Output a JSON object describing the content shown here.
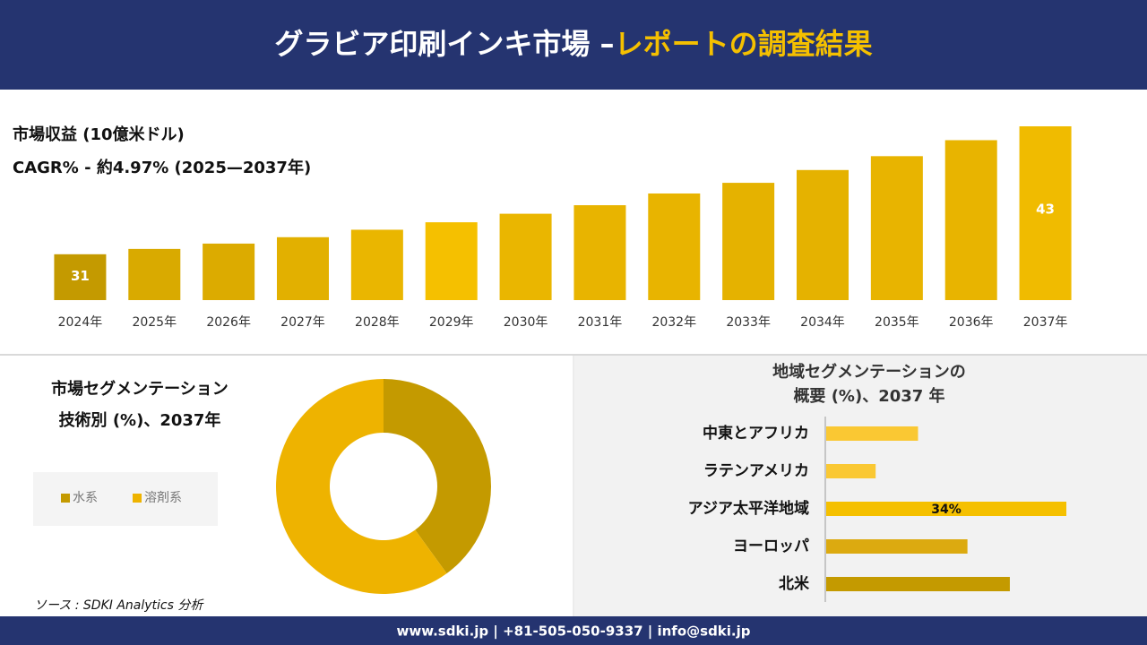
{
  "header": {
    "title": "グラビア印刷インキ市場 –",
    "highlight": "レポートの調査結果"
  },
  "chart_data": [
    {
      "type": "bar",
      "title": "市場収益 (10億米ドル)",
      "subtitle": "CAGR% - 約4.97% (2025—2037年)",
      "categories": [
        "2024年",
        "2025年",
        "2026年",
        "2027年",
        "2028年",
        "2029年",
        "2030年",
        "2031年",
        "2032年",
        "2033年",
        "2034年",
        "2035年",
        "2036年",
        "2037年"
      ],
      "values": [
        31,
        31.5,
        32,
        32.6,
        33.3,
        34,
        34.8,
        35.6,
        36.7,
        37.7,
        38.9,
        40.2,
        41.7,
        43
      ],
      "value_labels": [
        "31",
        null,
        null,
        null,
        null,
        null,
        null,
        null,
        null,
        null,
        null,
        null,
        null,
        "43"
      ],
      "colors": [
        "#c49a00",
        "#d9aa00",
        "#dcab00",
        "#e2b000",
        "#eab600",
        "#f5c000",
        "#eab600",
        "#e8b400",
        "#e8b400",
        "#e5b200",
        "#e5b200",
        "#e8b400",
        "#e8b400",
        "#f0bb00"
      ],
      "ylim": [
        26.7,
        43
      ]
    },
    {
      "type": "pie",
      "title": [
        "市場セグメンテーション",
        "技術別 (%)、2037年"
      ],
      "categories": [
        "水系",
        "溶剤系"
      ],
      "values": [
        40,
        60
      ],
      "colors": [
        "#c49a00",
        "#eeb300"
      ],
      "donut": true
    },
    {
      "type": "bar",
      "horizontal": true,
      "title": [
        "地域セグメンテーションの",
        "概要 (%)、2037 年"
      ],
      "categories": [
        "中東とアフリカ",
        "ラテンアメリカ",
        "アジア太平洋地域",
        "ヨーロッパ",
        "北米"
      ],
      "values": [
        13,
        7,
        34,
        20,
        26
      ],
      "value_labels": [
        null,
        null,
        "34%",
        null,
        null
      ],
      "colors": [
        "#fac833",
        "#fac833",
        "#f5c000",
        "#dcaa10",
        "#c49a00"
      ],
      "xlim": [
        0,
        34
      ]
    }
  ],
  "source": "ソース : SDKI Analytics 分析",
  "footer": "www.sdki.jp | +81-505-050-9337 | info@sdki.jp"
}
